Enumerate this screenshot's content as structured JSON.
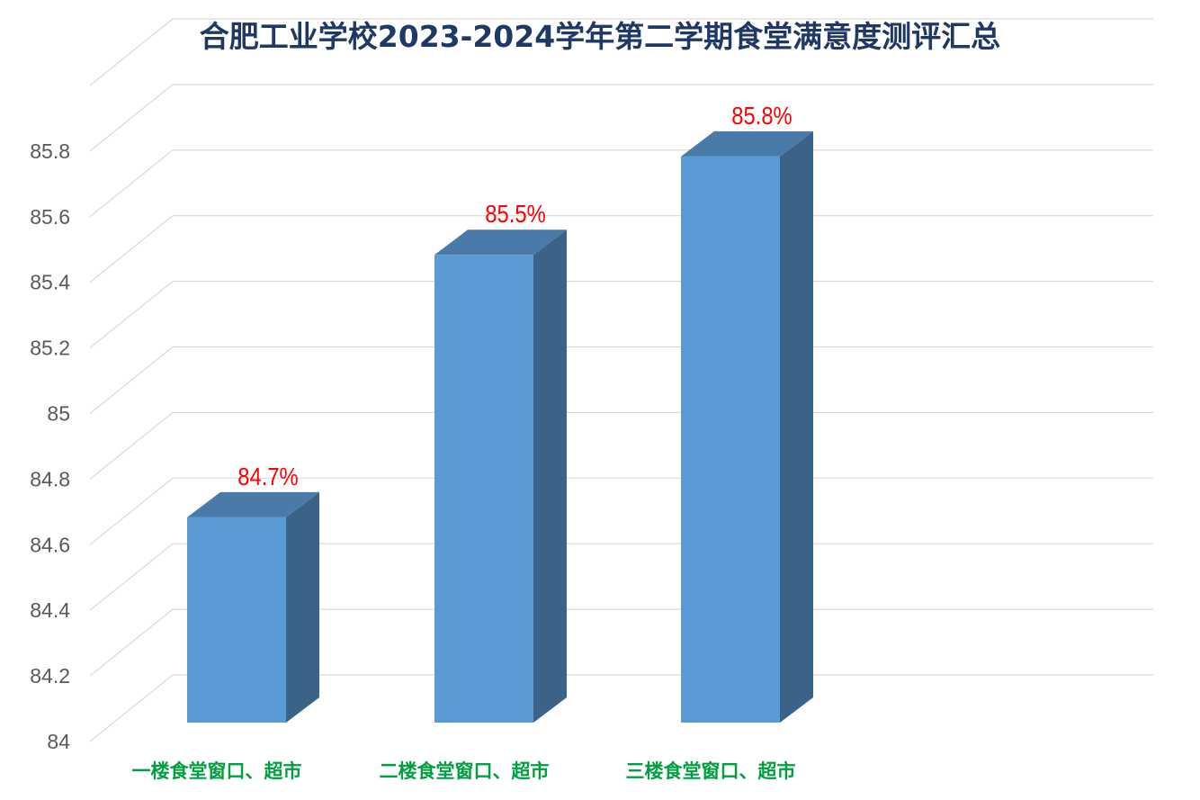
{
  "chart_data": {
    "type": "bar",
    "title": "合肥工业学校2023-2024学年第二学期食堂满意度测评汇总",
    "categories": [
      "一楼食堂窗口、超市",
      "二楼食堂窗口、超市",
      "三楼食堂窗口、超市"
    ],
    "values": [
      84.7,
      85.5,
      85.8
    ],
    "data_labels": [
      "84.7%",
      "85.5%",
      "85.8%"
    ],
    "ylim": [
      84,
      86
    ],
    "yticks": [
      84,
      84.2,
      84.4,
      84.6,
      84.8,
      85,
      85.2,
      85.4,
      85.6,
      85.8
    ],
    "ytick_labels": [
      "84",
      "84.2",
      "84.4",
      "84.6",
      "84.8",
      "85",
      "85.2",
      "85.4",
      "85.6",
      "85.8"
    ],
    "grid": true,
    "style": "3d-column"
  },
  "colors": {
    "title": "#1f3864",
    "bar_front": "#5b9bd5",
    "bar_top": "#4a7aa8",
    "bar_side": "#3b6387",
    "data_label": "#ff0000",
    "category_label": "#00a040",
    "tick_label": "#595959",
    "grid": "#d9d9d9"
  }
}
